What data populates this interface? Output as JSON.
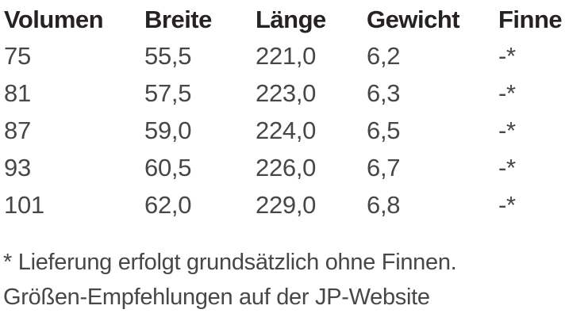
{
  "table": {
    "columns": [
      "Volumen",
      "Breite",
      "Länge",
      "Gewicht",
      "Finne"
    ],
    "rows": [
      [
        "75",
        "55,5",
        "221,0",
        "6,2",
        "-*"
      ],
      [
        "81",
        "57,5",
        "223,0",
        "6,3",
        "-*"
      ],
      [
        "87",
        "59,0",
        "224,0",
        "6,5",
        "-*"
      ],
      [
        "93",
        "60,5",
        "226,0",
        "6,7",
        "-*"
      ],
      [
        "101",
        "62,0",
        "229,0",
        "6,8",
        "-*"
      ]
    ]
  },
  "footnotes": {
    "fins_note": "* Lieferung erfolgt grundsätzlich ohne Finnen.",
    "size_note": "Größen-Empfehlungen auf der JP-Website"
  },
  "colors": {
    "background": "#ffffff",
    "header_text": "#262223",
    "body_text": "#474747"
  }
}
